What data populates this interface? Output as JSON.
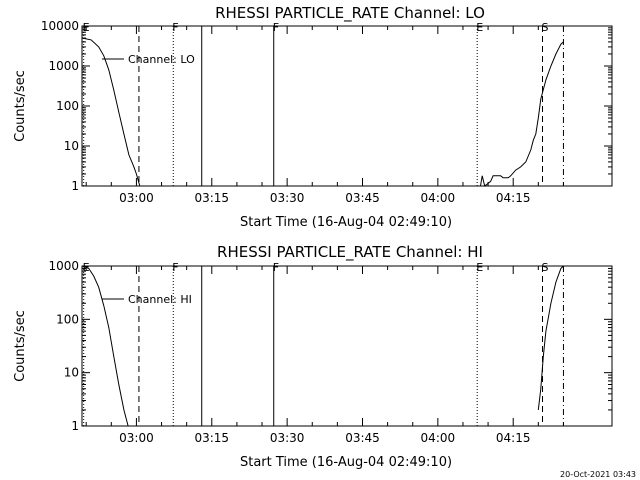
{
  "footer_timestamp": "20-Oct-2021 03:43",
  "chart_data": [
    {
      "type": "line",
      "title": "RHESSI PARTICLE_RATE Channel: LO",
      "xlabel": "Start Time (16-Aug-04 02:49:10)",
      "ylabel": "Counts/sec",
      "y_scale": "log",
      "ylim": [
        1,
        10000
      ],
      "y_ticks": [
        {
          "value": 1,
          "label": "1"
        },
        {
          "value": 10,
          "label": "10"
        },
        {
          "value": 100,
          "label": "100"
        },
        {
          "value": 1000,
          "label": "1000"
        },
        {
          "value": 10000,
          "label": "10000"
        }
      ],
      "xlim": [
        "02:49:10",
        "04:34:40"
      ],
      "x_ticks": [
        "03:00",
        "03:15",
        "03:30",
        "03:45",
        "04:00",
        "04:15"
      ],
      "grid": false,
      "legend": {
        "placement": "top-left",
        "entry": "Channel: LO"
      },
      "markers": [
        {
          "time": "02:49:30",
          "label": "E",
          "style": "dotted"
        },
        {
          "time": "03:00:30",
          "label": "",
          "style": "dashed"
        },
        {
          "time": "03:07:20",
          "label": "F",
          "style": "dotted"
        },
        {
          "time": "03:13:00",
          "label": "",
          "style": "solid"
        },
        {
          "time": "03:27:20",
          "label": "F",
          "style": "solid"
        },
        {
          "time": "04:07:50",
          "label": "E",
          "style": "dotted"
        },
        {
          "time": "04:20:50",
          "label": "S",
          "style": "dashed"
        },
        {
          "time": "04:25:00",
          "label": "",
          "style": "dashdot"
        }
      ],
      "series": [
        {
          "segments": [
            [
              [
                "02:49:10",
                5000
              ],
              [
                "02:51:00",
                4500
              ],
              [
                "02:52:30",
                3000
              ],
              [
                "02:53:30",
                1800
              ],
              [
                "02:54:30",
                800
              ],
              [
                "02:55:30",
                250
              ],
              [
                "02:56:30",
                70
              ],
              [
                "02:57:30",
                20
              ],
              [
                "02:58:30",
                6
              ],
              [
                "02:59:30",
                3
              ],
              [
                "03:00:00",
                2
              ],
              [
                "03:00:40",
                1
              ]
            ],
            [
              [
                "04:08:30",
                1
              ],
              [
                "04:08:50",
                1.8
              ],
              [
                "04:09:20",
                1
              ],
              [
                "04:10:30",
                1.3
              ],
              [
                "04:11:00",
                1.8
              ],
              [
                "04:12:30",
                1.8
              ],
              [
                "04:13:00",
                1.6
              ],
              [
                "04:14:00",
                1.6
              ],
              [
                "04:14:30",
                1.8
              ],
              [
                "04:15:30",
                2.5
              ],
              [
                "04:16:30",
                3
              ],
              [
                "04:17:30",
                4
              ],
              [
                "04:18:30",
                8
              ],
              [
                "04:19:00",
                14
              ],
              [
                "04:19:30",
                20
              ],
              [
                "04:20:00",
                50
              ],
              [
                "04:20:30",
                150
              ],
              [
                "04:21:30",
                450
              ],
              [
                "04:22:30",
                1000
              ],
              [
                "04:23:30",
                2000
              ],
              [
                "04:24:30",
                3500
              ],
              [
                "04:25:00",
                4000
              ]
            ]
          ]
        }
      ]
    },
    {
      "type": "line",
      "title": "RHESSI PARTICLE_RATE Channel: HI",
      "xlabel": "Start Time (16-Aug-04 02:49:10)",
      "ylabel": "Counts/sec",
      "y_scale": "log",
      "ylim": [
        1,
        1000
      ],
      "y_ticks": [
        {
          "value": 1,
          "label": "1"
        },
        {
          "value": 10,
          "label": "10"
        },
        {
          "value": 100,
          "label": "100"
        },
        {
          "value": 1000,
          "label": "1000"
        }
      ],
      "xlim": [
        "02:49:10",
        "04:34:40"
      ],
      "x_ticks": [
        "03:00",
        "03:15",
        "03:30",
        "03:45",
        "04:00",
        "04:15"
      ],
      "grid": false,
      "legend": {
        "placement": "top-left",
        "entry": "Channel: HI"
      },
      "markers": [
        {
          "time": "02:49:30",
          "label": "E",
          "style": "dotted"
        },
        {
          "time": "03:00:30",
          "label": "",
          "style": "dashed"
        },
        {
          "time": "03:07:20",
          "label": "F",
          "style": "dotted"
        },
        {
          "time": "03:13:00",
          "label": "",
          "style": "solid"
        },
        {
          "time": "03:27:20",
          "label": "F",
          "style": "solid"
        },
        {
          "time": "04:07:50",
          "label": "E",
          "style": "dotted"
        },
        {
          "time": "04:20:50",
          "label": "S",
          "style": "dashed"
        },
        {
          "time": "04:25:00",
          "label": "",
          "style": "dashdot"
        }
      ],
      "series": [
        {
          "segments": [
            [
              [
                "02:49:10",
                1000
              ],
              [
                "02:50:30",
                900
              ],
              [
                "02:51:30",
                650
              ],
              [
                "02:52:30",
                400
              ],
              [
                "02:53:30",
                180
              ],
              [
                "02:54:30",
                70
              ],
              [
                "02:55:30",
                20
              ],
              [
                "02:56:30",
                6
              ],
              [
                "02:57:30",
                2
              ],
              [
                "02:58:20",
                1
              ]
            ],
            [
              [
                "04:20:00",
                2
              ],
              [
                "04:20:30",
                5
              ],
              [
                "04:21:00",
                20
              ],
              [
                "04:21:30",
                60
              ],
              [
                "04:22:30",
                200
              ],
              [
                "04:23:30",
                500
              ],
              [
                "04:24:30",
                900
              ],
              [
                "04:25:00",
                1000
              ]
            ]
          ]
        }
      ]
    }
  ]
}
